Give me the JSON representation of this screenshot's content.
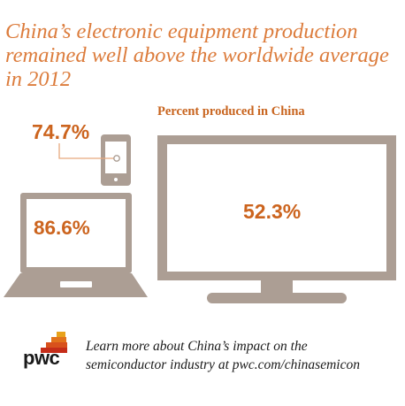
{
  "title_lines": [
    "China’s electronic equipment production",
    "remained well above the worldwide average",
    "in 2012"
  ],
  "subtitle": "Percent produced in China",
  "devices": {
    "phone": {
      "value": "74.7%",
      "icon": "smartphone-icon"
    },
    "laptop": {
      "value": "86.6%",
      "icon": "laptop-icon"
    },
    "tv": {
      "value": "52.3%",
      "icon": "television-icon"
    }
  },
  "footer": {
    "lines": [
      "Learn more about China’s impact on the",
      "semiconductor industry at pwc.com/chinasemicon"
    ],
    "logo_text": "pwc"
  },
  "colors": {
    "accent": "#dc7c3c",
    "value": "#cc641e",
    "device": "#ac9e94",
    "connector": "#e6a97e"
  }
}
